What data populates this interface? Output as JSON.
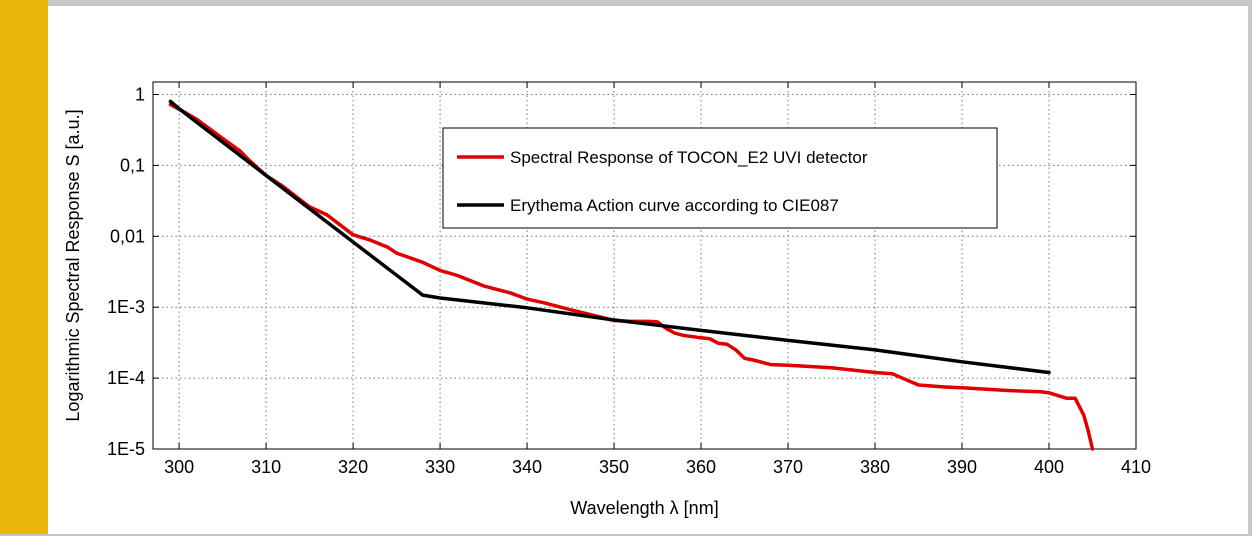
{
  "chart_data": {
    "type": "line",
    "title": "",
    "xlabel": "Wavelength λ [nm]",
    "ylabel": "Logarithmic Spectral Response S [a.u.]",
    "xlim": [
      297,
      410
    ],
    "ylim": [
      1e-05,
      1.5
    ],
    "yscale": "log",
    "grid": true,
    "legend_position": "top-center",
    "x_ticks": [
      {
        "value": 300,
        "label": "300"
      },
      {
        "value": 310,
        "label": "310"
      },
      {
        "value": 320,
        "label": "320"
      },
      {
        "value": 330,
        "label": "330"
      },
      {
        "value": 340,
        "label": "340"
      },
      {
        "value": 350,
        "label": "350"
      },
      {
        "value": 360,
        "label": "360"
      },
      {
        "value": 370,
        "label": "370"
      },
      {
        "value": 380,
        "label": "380"
      },
      {
        "value": 390,
        "label": "390"
      },
      {
        "value": 400,
        "label": "400"
      },
      {
        "value": 410,
        "label": "410"
      }
    ],
    "y_ticks": [
      {
        "value": 1,
        "label": "1"
      },
      {
        "value": 0.1,
        "label": "0,1"
      },
      {
        "value": 0.01,
        "label": "0,01"
      },
      {
        "value": 0.001,
        "label": "1E-3"
      },
      {
        "value": 0.0001,
        "label": "1E-4"
      },
      {
        "value": 1e-05,
        "label": "1E-5"
      }
    ],
    "series": [
      {
        "name": "Spectral Response of TOCON_E2 UVI detector",
        "color": "#e00000",
        "points": [
          [
            299,
            0.72
          ],
          [
            300,
            0.62
          ],
          [
            302,
            0.45
          ],
          [
            305,
            0.24
          ],
          [
            307,
            0.16
          ],
          [
            308,
            0.12
          ],
          [
            310,
            0.072
          ],
          [
            312,
            0.05
          ],
          [
            313,
            0.04
          ],
          [
            315,
            0.026
          ],
          [
            317,
            0.02
          ],
          [
            319,
            0.013
          ],
          [
            320,
            0.0105
          ],
          [
            322,
            0.0088
          ],
          [
            324,
            0.007
          ],
          [
            325,
            0.0058
          ],
          [
            328,
            0.0043
          ],
          [
            330,
            0.0033
          ],
          [
            332,
            0.0028
          ],
          [
            335,
            0.002
          ],
          [
            338,
            0.0016
          ],
          [
            340,
            0.0013
          ],
          [
            342,
            0.00115
          ],
          [
            345,
            0.00092
          ],
          [
            348,
            0.00075
          ],
          [
            350,
            0.00065
          ],
          [
            352,
            0.00063
          ],
          [
            354,
            0.00063
          ],
          [
            355,
            0.00062
          ],
          [
            356,
            0.0005
          ],
          [
            357,
            0.00043
          ],
          [
            358,
            0.0004
          ],
          [
            360,
            0.00037
          ],
          [
            361,
            0.00036
          ],
          [
            362,
            0.00031
          ],
          [
            363,
            0.0003
          ],
          [
            364,
            0.00025
          ],
          [
            365,
            0.00019
          ],
          [
            366,
            0.00018
          ],
          [
            368,
            0.000155
          ],
          [
            370,
            0.000152
          ],
          [
            375,
            0.00014
          ],
          [
            380,
            0.00012
          ],
          [
            382,
            0.000115
          ],
          [
            384,
            9e-05
          ],
          [
            385,
            8e-05
          ],
          [
            388,
            7.5e-05
          ],
          [
            390,
            7.3e-05
          ],
          [
            395,
            6.7e-05
          ],
          [
            399,
            6.4e-05
          ],
          [
            400,
            6.2e-05
          ],
          [
            402,
            5.2e-05
          ],
          [
            403,
            5.2e-05
          ],
          [
            404,
            3e-05
          ],
          [
            404.5,
            1.8e-05
          ],
          [
            405,
            1e-05
          ]
        ]
      },
      {
        "name": "Erythema Action curve according to CIE087",
        "color": "#000000",
        "points": [
          [
            299,
            0.8
          ],
          [
            300,
            0.63
          ],
          [
            310,
            0.072
          ],
          [
            320,
            0.0083
          ],
          [
            328,
            0.00148
          ],
          [
            330,
            0.00135
          ],
          [
            340,
            0.00098
          ],
          [
            350,
            0.00066
          ],
          [
            360,
            0.00047
          ],
          [
            370,
            0.00034
          ],
          [
            380,
            0.00025
          ],
          [
            390,
            0.00017
          ],
          [
            400,
            0.00012
          ]
        ]
      }
    ]
  }
}
